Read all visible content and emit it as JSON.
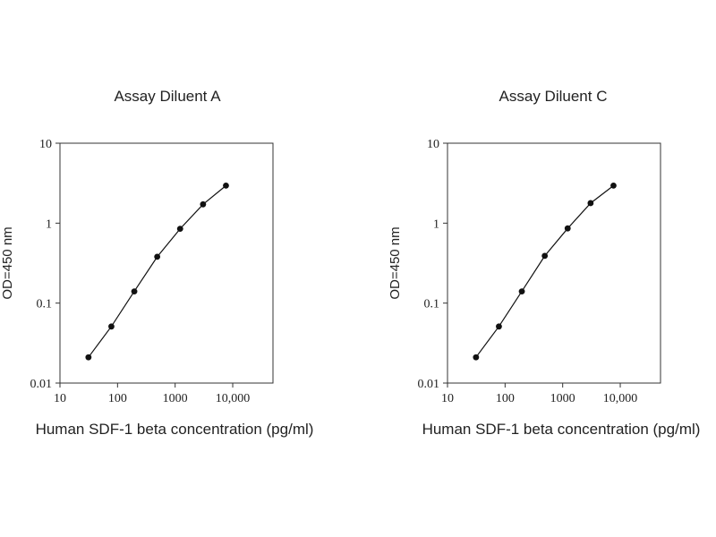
{
  "chart_data": [
    {
      "type": "line",
      "title": "Assay Diluent A",
      "xlabel": "Human SDF-1 beta concentration (pg/ml)",
      "ylabel": "OD=450 nm",
      "xscale": "log",
      "yscale": "log",
      "xlim": [
        10,
        50000
      ],
      "ylim": [
        0.01,
        10
      ],
      "xticks": [
        10,
        100,
        1000,
        10000
      ],
      "xtick_labels": [
        "10",
        "100",
        "1000",
        "10,000"
      ],
      "yticks": [
        0.01,
        0.1,
        1,
        10
      ],
      "ytick_labels": [
        "0.01",
        "0.1",
        "1",
        "10"
      ],
      "grid": false,
      "legend": "none",
      "series": [
        {
          "x": [
            31.25,
            78.1,
            195.3,
            488.3,
            1220.7,
            3051.8,
            7629.4
          ],
          "y": [
            0.021,
            0.051,
            0.14,
            0.38,
            0.85,
            1.72,
            2.95
          ]
        }
      ]
    },
    {
      "type": "line",
      "title": "Assay Diluent C",
      "xlabel": "Human SDF-1 beta concentration (pg/ml)",
      "ylabel": "OD=450 nm",
      "xscale": "log",
      "yscale": "log",
      "xlim": [
        10,
        50000
      ],
      "ylim": [
        0.01,
        10
      ],
      "xticks": [
        10,
        100,
        1000,
        10000
      ],
      "xtick_labels": [
        "10",
        "100",
        "1000",
        "10,000"
      ],
      "yticks": [
        0.01,
        0.1,
        1,
        10
      ],
      "ytick_labels": [
        "0.01",
        "0.1",
        "1",
        "10"
      ],
      "grid": false,
      "legend": "none",
      "series": [
        {
          "x": [
            31.25,
            78.1,
            195.3,
            488.3,
            1220.7,
            3051.8,
            7629.4
          ],
          "y": [
            0.021,
            0.051,
            0.14,
            0.39,
            0.86,
            1.78,
            2.95
          ]
        }
      ]
    }
  ]
}
